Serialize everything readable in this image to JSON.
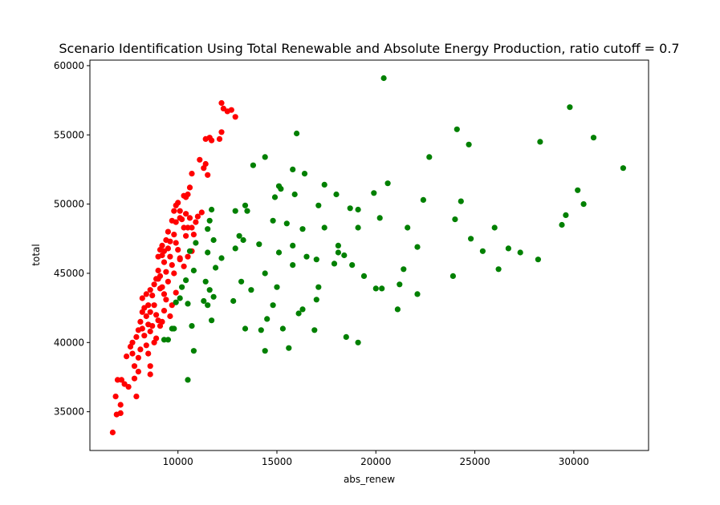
{
  "chart_data": {
    "type": "scatter",
    "title": "Scenario Identification Using Total Renewable and Absolute Energy Production, ratio cutoff = 0.7",
    "xlabel": "abs_renew",
    "ylabel": "total",
    "xlim": [
      5550,
      33780
    ],
    "ylim": [
      32200,
      60400
    ],
    "xticks": [
      10000,
      15000,
      20000,
      25000,
      30000
    ],
    "yticks": [
      35000,
      40000,
      45000,
      50000,
      55000,
      60000
    ],
    "grid": false,
    "series": [
      {
        "color": "#ff0000",
        "points": [
          [
            6700,
            33500
          ],
          [
            6900,
            34800
          ],
          [
            7100,
            34900
          ],
          [
            6850,
            36100
          ],
          [
            7100,
            35500
          ],
          [
            7900,
            36100
          ],
          [
            6950,
            37300
          ],
          [
            7150,
            37300
          ],
          [
            7300,
            37000
          ],
          [
            7500,
            36800
          ],
          [
            7800,
            37400
          ],
          [
            8600,
            37700
          ],
          [
            7400,
            39000
          ],
          [
            7600,
            39700
          ],
          [
            7700,
            39200
          ],
          [
            8000,
            38900
          ],
          [
            7700,
            40000
          ],
          [
            7900,
            40400
          ],
          [
            8000,
            40900
          ],
          [
            8100,
            41500
          ],
          [
            8200,
            41000
          ],
          [
            8300,
            40500
          ],
          [
            8400,
            39800
          ],
          [
            8500,
            39200
          ],
          [
            8600,
            38300
          ],
          [
            7800,
            38300
          ],
          [
            8000,
            37900
          ],
          [
            8100,
            39500
          ],
          [
            8200,
            42200
          ],
          [
            8300,
            42500
          ],
          [
            8400,
            41900
          ],
          [
            8500,
            41300
          ],
          [
            8600,
            40800
          ],
          [
            8700,
            41200
          ],
          [
            8800,
            40000
          ],
          [
            8900,
            40300
          ],
          [
            8200,
            43200
          ],
          [
            8400,
            43500
          ],
          [
            8500,
            42700
          ],
          [
            8600,
            42200
          ],
          [
            8700,
            43400
          ],
          [
            8800,
            42700
          ],
          [
            8900,
            42000
          ],
          [
            9000,
            41600
          ],
          [
            9100,
            41200
          ],
          [
            9200,
            41500
          ],
          [
            8600,
            43800
          ],
          [
            8800,
            44200
          ],
          [
            8900,
            44600
          ],
          [
            9000,
            45200
          ],
          [
            9100,
            44800
          ],
          [
            9200,
            44000
          ],
          [
            9300,
            43500
          ],
          [
            9400,
            43100
          ],
          [
            9000,
            46200
          ],
          [
            9100,
            46700
          ],
          [
            9200,
            46300
          ],
          [
            9300,
            45800
          ],
          [
            9400,
            45100
          ],
          [
            9500,
            44400
          ],
          [
            9200,
            47000
          ],
          [
            9400,
            47400
          ],
          [
            9500,
            46800
          ],
          [
            9600,
            46200
          ],
          [
            9700,
            45600
          ],
          [
            9800,
            45000
          ],
          [
            9500,
            48000
          ],
          [
            9700,
            48800
          ],
          [
            9800,
            47800
          ],
          [
            9900,
            47200
          ],
          [
            10000,
            46700
          ],
          [
            10100,
            46100
          ],
          [
            9800,
            49500
          ],
          [
            10000,
            50100
          ],
          [
            10100,
            49500
          ],
          [
            10200,
            48900
          ],
          [
            10300,
            48300
          ],
          [
            10400,
            47700
          ],
          [
            10300,
            50600
          ],
          [
            10500,
            50700
          ],
          [
            10600,
            51200
          ],
          [
            10700,
            52200
          ],
          [
            10400,
            49300
          ],
          [
            10600,
            49000
          ],
          [
            10700,
            48300
          ],
          [
            10800,
            47800
          ],
          [
            10900,
            48700
          ],
          [
            11000,
            49100
          ],
          [
            11200,
            49400
          ],
          [
            11300,
            52600
          ],
          [
            11100,
            53200
          ],
          [
            11400,
            52900
          ],
          [
            11500,
            52100
          ],
          [
            11400,
            54700
          ],
          [
            11600,
            54800
          ],
          [
            11700,
            54600
          ],
          [
            12100,
            54700
          ],
          [
            12200,
            55200
          ],
          [
            12200,
            57300
          ],
          [
            12300,
            56900
          ],
          [
            12500,
            56700
          ],
          [
            12700,
            56800
          ],
          [
            12900,
            56300
          ],
          [
            10700,
            46600
          ],
          [
            10100,
            46000
          ],
          [
            10500,
            46200
          ],
          [
            10300,
            45500
          ],
          [
            9900,
            43600
          ],
          [
            9700,
            42700
          ],
          [
            9600,
            41900
          ],
          [
            9300,
            42300
          ],
          [
            9100,
            43900
          ],
          [
            9000,
            44600
          ],
          [
            9300,
            46600
          ],
          [
            9600,
            47300
          ],
          [
            9900,
            48700
          ],
          [
            9900,
            49900
          ],
          [
            10100,
            49000
          ],
          [
            10500,
            48300
          ],
          [
            10400,
            50500
          ]
        ]
      },
      {
        "color": "#008000",
        "points": [
          [
            9300,
            40200
          ],
          [
            9500,
            40200
          ],
          [
            9800,
            41000
          ],
          [
            9700,
            41000
          ],
          [
            9900,
            42900
          ],
          [
            10100,
            43200
          ],
          [
            10400,
            44500
          ],
          [
            10200,
            44000
          ],
          [
            10500,
            42800
          ],
          [
            10600,
            46600
          ],
          [
            10800,
            45200
          ],
          [
            10900,
            47200
          ],
          [
            10500,
            37300
          ],
          [
            10800,
            39400
          ],
          [
            10700,
            41200
          ],
          [
            11300,
            43000
          ],
          [
            11500,
            42700
          ],
          [
            11400,
            44400
          ],
          [
            11600,
            43800
          ],
          [
            11700,
            41600
          ],
          [
            11800,
            43300
          ],
          [
            11500,
            46500
          ],
          [
            11900,
            45400
          ],
          [
            11800,
            47400
          ],
          [
            11500,
            48200
          ],
          [
            11600,
            48800
          ],
          [
            11700,
            49600
          ],
          [
            12200,
            46100
          ],
          [
            12800,
            43000
          ],
          [
            12900,
            46800
          ],
          [
            12900,
            49500
          ],
          [
            13100,
            47700
          ],
          [
            13200,
            44400
          ],
          [
            13300,
            47400
          ],
          [
            13400,
            49900
          ],
          [
            13500,
            49500
          ],
          [
            13400,
            41000
          ],
          [
            13700,
            43800
          ],
          [
            13800,
            52800
          ],
          [
            14100,
            47100
          ],
          [
            14200,
            40900
          ],
          [
            14400,
            39400
          ],
          [
            14400,
            45000
          ],
          [
            14500,
            41700
          ],
          [
            14400,
            53400
          ],
          [
            14800,
            48800
          ],
          [
            14900,
            50500
          ],
          [
            14800,
            42700
          ],
          [
            15000,
            44000
          ],
          [
            15100,
            46500
          ],
          [
            15100,
            51300
          ],
          [
            15200,
            51100
          ],
          [
            15300,
            41000
          ],
          [
            15500,
            48600
          ],
          [
            15600,
            39600
          ],
          [
            15800,
            47000
          ],
          [
            15800,
            45600
          ],
          [
            15800,
            52500
          ],
          [
            15900,
            50700
          ],
          [
            16000,
            55100
          ],
          [
            16100,
            42100
          ],
          [
            16300,
            42400
          ],
          [
            16300,
            48200
          ],
          [
            16400,
            52200
          ],
          [
            16500,
            46200
          ],
          [
            16900,
            40900
          ],
          [
            17000,
            43100
          ],
          [
            17000,
            46000
          ],
          [
            17100,
            44000
          ],
          [
            17100,
            49900
          ],
          [
            17400,
            51400
          ],
          [
            17400,
            48300
          ],
          [
            17900,
            45700
          ],
          [
            18000,
            50700
          ],
          [
            18100,
            47000
          ],
          [
            18100,
            46500
          ],
          [
            18400,
            46300
          ],
          [
            18500,
            40400
          ],
          [
            18700,
            49700
          ],
          [
            18800,
            45600
          ],
          [
            19100,
            48300
          ],
          [
            19100,
            49600
          ],
          [
            19100,
            40000
          ],
          [
            19400,
            44800
          ],
          [
            19900,
            50800
          ],
          [
            20000,
            43900
          ],
          [
            20200,
            49000
          ],
          [
            20300,
            43900
          ],
          [
            20400,
            59100
          ],
          [
            20600,
            51500
          ],
          [
            21100,
            42400
          ],
          [
            21200,
            44200
          ],
          [
            21400,
            45300
          ],
          [
            21600,
            48300
          ],
          [
            22100,
            43500
          ],
          [
            22100,
            46900
          ],
          [
            22400,
            50300
          ],
          [
            22700,
            53400
          ],
          [
            23900,
            44800
          ],
          [
            24000,
            48900
          ],
          [
            24100,
            55400
          ],
          [
            24300,
            50200
          ],
          [
            24700,
            54300
          ],
          [
            24800,
            47500
          ],
          [
            25400,
            46600
          ],
          [
            26000,
            48300
          ],
          [
            26200,
            45300
          ],
          [
            26700,
            46800
          ],
          [
            27300,
            46500
          ],
          [
            28200,
            46000
          ],
          [
            28300,
            54500
          ],
          [
            29400,
            48500
          ],
          [
            29600,
            49200
          ],
          [
            29800,
            57000
          ],
          [
            30200,
            51000
          ],
          [
            30500,
            50000
          ],
          [
            31000,
            54800
          ],
          [
            32500,
            52600
          ]
        ]
      }
    ]
  }
}
